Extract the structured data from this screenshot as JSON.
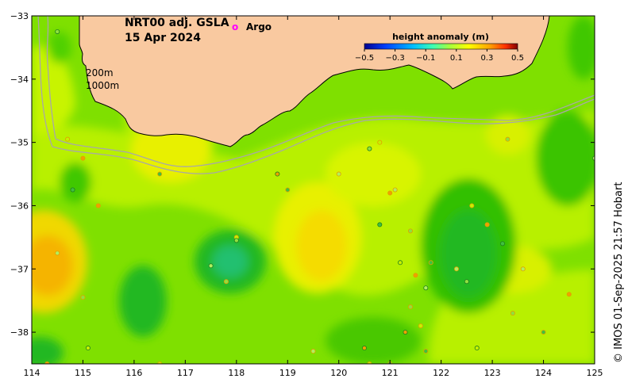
{
  "title": {
    "line1": "NRT00 adj. GSLA",
    "line2": "15 Apr 2024"
  },
  "legend": {
    "argo_symbol": "o",
    "argo_label": "Argo",
    "argo_color": "#ff00ff"
  },
  "isobaths": [
    "200m",
    "1000m"
  ],
  "colorbar": {
    "title": "height anomaly (m)",
    "ticks": [
      "−0.5",
      "−0.3",
      "−0.1",
      "0.1",
      "0.3",
      "0.5"
    ],
    "colors": [
      "#00008f",
      "#0040ff",
      "#00c0ff",
      "#40ffb0",
      "#a0ff40",
      "#ffff00",
      "#ffa000",
      "#ff3000",
      "#800000"
    ]
  },
  "credit": "© IMOS 01-Sep-2025 21:57 Hobart",
  "axes": {
    "x_ticks": [
      "114",
      "115",
      "116",
      "117",
      "118",
      "119",
      "120",
      "121",
      "122",
      "123",
      "124",
      "125"
    ],
    "y_ticks": [
      "−33",
      "−34",
      "−35",
      "−36",
      "−37",
      "−38"
    ],
    "lon_range": [
      114,
      125
    ],
    "lat_range": [
      -38.5,
      -33
    ]
  },
  "colors": {
    "land": "#f9c9a0",
    "coast": "#000000",
    "isobath": "#a8a8a8",
    "base_sea": "#7fe000"
  }
}
